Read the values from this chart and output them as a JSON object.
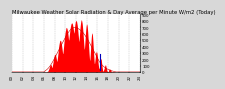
{
  "title": "Milwaukee Weather Solar Radiation & Day Average per Minute W/m2 (Today)",
  "bg_color": "#d8d8d8",
  "plot_bg_color": "#ffffff",
  "area_color": "#ff0000",
  "marker_color": "#0000bb",
  "ylim": [
    0,
    900
  ],
  "xlim": [
    0,
    1440
  ],
  "yticks": [
    0,
    100,
    200,
    300,
    400,
    500,
    600,
    700,
    800,
    900
  ],
  "grid_color": "#bbbbbb",
  "title_fontsize": 3.8,
  "tick_fontsize": 2.8,
  "current_minute": 990,
  "sunrise": 370,
  "sunset": 1160
}
